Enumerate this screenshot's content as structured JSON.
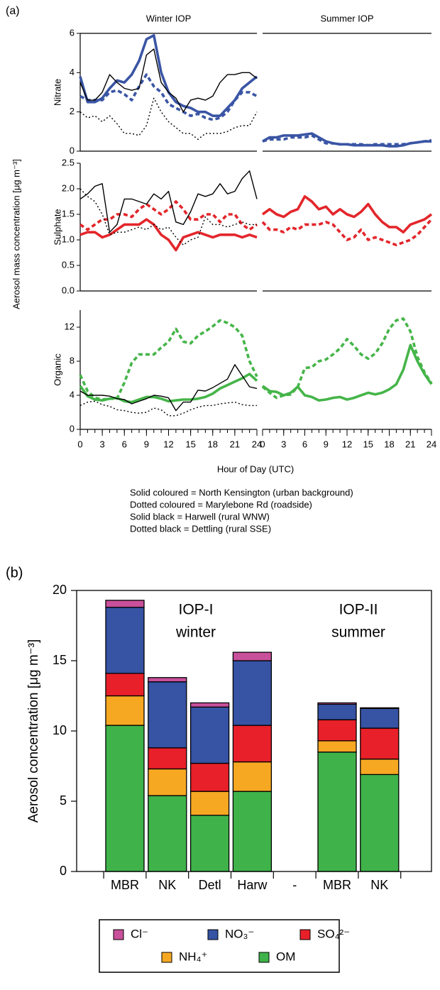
{
  "panel_a": {
    "label": "(a)",
    "ylabel": "Aerosol mass concentration [μg m⁻³]",
    "xlabel": "Hour of Day (UTC)",
    "notes": [
      "Solid coloured = North Kensington (urban background)",
      "Dotted coloured = Marylebone Rd (roadside)",
      "Solid black = Harwell (rural WNW)",
      "Dotted black = Dettling (rural SSE)"
    ]
  },
  "panel_b": {
    "label": "(b)"
  },
  "chart_data": [
    {
      "type": "line",
      "title": "Winter IOP",
      "ylabel": "Nitrate",
      "x": [
        0,
        1,
        2,
        3,
        4,
        5,
        6,
        7,
        8,
        9,
        10,
        11,
        12,
        13,
        14,
        15,
        16,
        17,
        18,
        19,
        20,
        21,
        22,
        23,
        24
      ],
      "xlim": [
        0,
        24
      ],
      "ylim": [
        0,
        6
      ],
      "yticks": [
        0,
        2,
        4,
        6
      ],
      "series": [
        {
          "color": "#3a55a4",
          "dash": false,
          "values": [
            3.8,
            2.5,
            2.5,
            2.7,
            3.2,
            3.6,
            3.5,
            3.9,
            4.6,
            5.7,
            5.9,
            4.0,
            3.0,
            2.5,
            2.3,
            2.2,
            2.0,
            2.0,
            1.8,
            1.8,
            2.2,
            2.6,
            3.2,
            3.5,
            3.8
          ]
        },
        {
          "color": "#3a55a4",
          "dash": true,
          "values": [
            2.8,
            2.6,
            2.6,
            2.6,
            3.0,
            3.1,
            2.9,
            2.6,
            3.3,
            3.9,
            3.3,
            3.0,
            2.4,
            2.2,
            2.0,
            1.8,
            1.9,
            1.7,
            1.6,
            1.7,
            2.0,
            2.6,
            3.0,
            3.0,
            2.8
          ]
        },
        {
          "color": "#000000",
          "dash": false,
          "values": [
            3.5,
            2.6,
            2.6,
            3.0,
            3.9,
            3.5,
            3.2,
            3.1,
            3.2,
            4.9,
            5.2,
            3.5,
            3.0,
            2.7,
            2.0,
            2.6,
            2.7,
            2.6,
            2.8,
            3.5,
            3.9,
            3.9,
            4.0,
            4.0,
            3.7
          ]
        },
        {
          "color": "#000000",
          "dash": true,
          "values": [
            2.0,
            1.7,
            1.8,
            1.5,
            1.8,
            1.4,
            0.9,
            0.9,
            0.8,
            1.3,
            2.7,
            2.0,
            1.5,
            1.2,
            0.9,
            0.9,
            0.6,
            0.9,
            0.9,
            0.9,
            1.0,
            1.2,
            1.3,
            1.3,
            2.0
          ]
        }
      ]
    },
    {
      "type": "line",
      "title": "Summer IOP",
      "x": [
        0,
        1,
        2,
        3,
        4,
        5,
        6,
        7,
        8,
        9,
        10,
        11,
        12,
        13,
        14,
        15,
        16,
        17,
        18,
        19,
        20,
        21,
        22,
        23,
        24
      ],
      "xlim": [
        0,
        24
      ],
      "ylim": [
        0,
        6
      ],
      "series": [
        {
          "color": "#3a55a4",
          "dash": false,
          "values": [
            0.5,
            0.7,
            0.7,
            0.8,
            0.8,
            0.8,
            0.85,
            0.9,
            0.7,
            0.5,
            0.4,
            0.35,
            0.35,
            0.3,
            0.3,
            0.3,
            0.3,
            0.3,
            0.25,
            0.25,
            0.3,
            0.4,
            0.45,
            0.5,
            0.5
          ]
        },
        {
          "color": "#3a55a4",
          "dash": true,
          "values": [
            0.5,
            0.6,
            0.6,
            0.6,
            0.7,
            0.7,
            0.7,
            0.8,
            0.6,
            0.4,
            0.4,
            0.35,
            0.35,
            0.35,
            0.35,
            0.3,
            0.35,
            0.35,
            0.35,
            0.35,
            0.35,
            0.4,
            0.45,
            0.5,
            0.55
          ]
        }
      ]
    },
    {
      "type": "line",
      "ylabel": "Sulphate",
      "x": [
        0,
        1,
        2,
        3,
        4,
        5,
        6,
        7,
        8,
        9,
        10,
        11,
        12,
        13,
        14,
        15,
        16,
        17,
        18,
        19,
        20,
        21,
        22,
        23,
        24
      ],
      "xlim": [
        0,
        24
      ],
      "ylim": [
        0,
        2.5
      ],
      "yticks": [
        {
          "value": 0,
          "label": "0.0"
        },
        0.5,
        {
          "value": 1,
          "label": "1.0"
        },
        1.5,
        {
          "value": 2,
          "label": "2.0"
        },
        2.5
      ],
      "series": [
        {
          "color": "#e3262b",
          "dash": false,
          "values": [
            1.1,
            1.15,
            1.15,
            1.05,
            1.1,
            1.2,
            1.3,
            1.3,
            1.3,
            1.4,
            1.3,
            1.1,
            1.0,
            0.8,
            1.05,
            1.1,
            1.15,
            1.1,
            1.05,
            1.1,
            1.1,
            1.1,
            1.05,
            1.1,
            1.05
          ]
        },
        {
          "color": "#e3262b",
          "dash": true,
          "values": [
            1.3,
            1.2,
            1.3,
            1.4,
            1.4,
            1.5,
            1.5,
            1.45,
            1.6,
            1.7,
            1.6,
            1.5,
            1.6,
            1.75,
            1.6,
            1.4,
            1.4,
            1.5,
            1.5,
            1.35,
            1.5,
            1.5,
            1.3,
            1.2,
            1.3
          ]
        },
        {
          "color": "#000000",
          "dash": false,
          "values": [
            1.8,
            1.9,
            2.05,
            2.1,
            1.15,
            1.3,
            1.8,
            1.8,
            1.75,
            1.7,
            1.9,
            1.8,
            1.95,
            1.35,
            1.3,
            1.55,
            1.9,
            1.85,
            1.9,
            2.1,
            1.9,
            1.95,
            2.2,
            2.35,
            1.8
          ]
        },
        {
          "color": "#000000",
          "dash": true,
          "values": [
            2.0,
            1.85,
            1.75,
            1.5,
            1.1,
            1.15,
            1.15,
            1.2,
            1.25,
            1.2,
            1.3,
            1.2,
            1.25,
            1.05,
            0.9,
            1.0,
            1.05,
            1.45,
            1.3,
            1.3,
            1.25,
            1.3,
            1.35,
            1.3,
            1.3
          ]
        }
      ]
    },
    {
      "type": "line",
      "x": [
        0,
        1,
        2,
        3,
        4,
        5,
        6,
        7,
        8,
        9,
        10,
        11,
        12,
        13,
        14,
        15,
        16,
        17,
        18,
        19,
        20,
        21,
        22,
        23,
        24
      ],
      "xlim": [
        0,
        24
      ],
      "ylim": [
        0,
        2.5
      ],
      "series": [
        {
          "color": "#e3262b",
          "dash": false,
          "values": [
            1.5,
            1.6,
            1.5,
            1.45,
            1.55,
            1.6,
            1.85,
            1.75,
            1.6,
            1.65,
            1.5,
            1.6,
            1.5,
            1.45,
            1.55,
            1.7,
            1.5,
            1.35,
            1.25,
            1.25,
            1.15,
            1.3,
            1.35,
            1.4,
            1.5
          ]
        },
        {
          "color": "#e3262b",
          "dash": true,
          "values": [
            1.35,
            1.2,
            1.2,
            1.15,
            1.25,
            1.2,
            1.3,
            1.3,
            1.3,
            1.35,
            1.3,
            1.15,
            1.0,
            1.05,
            1.2,
            1.0,
            1.05,
            1.0,
            0.95,
            0.9,
            0.95,
            1.0,
            1.1,
            1.25,
            1.4
          ]
        }
      ]
    },
    {
      "type": "line",
      "ylabel": "Organic",
      "x": [
        0,
        1,
        2,
        3,
        4,
        5,
        6,
        7,
        8,
        9,
        10,
        11,
        12,
        13,
        14,
        15,
        16,
        17,
        18,
        19,
        20,
        21,
        22,
        23,
        24
      ],
      "xlim": [
        0,
        24
      ],
      "xticks": [
        0,
        3,
        6,
        9,
        12,
        15,
        18,
        21,
        24
      ],
      "ylim": [
        0,
        14
      ],
      "yticks": [
        0,
        4,
        8,
        12
      ],
      "series": [
        {
          "color": "#45b549",
          "dash": false,
          "values": [
            5.1,
            3.9,
            3.5,
            3.4,
            3.6,
            3.7,
            3.3,
            3.2,
            3.5,
            3.8,
            3.8,
            3.6,
            3.3,
            3.4,
            3.5,
            3.5,
            3.6,
            3.8,
            4.2,
            4.8,
            5.2,
            5.6,
            6.0,
            6.5,
            5.7
          ]
        },
        {
          "color": "#45b549",
          "dash": true,
          "values": [
            6.4,
            4.5,
            3.7,
            3.5,
            3.6,
            3.6,
            5.5,
            7.8,
            8.8,
            8.8,
            8.8,
            9.6,
            10.3,
            11.8,
            10.3,
            10.1,
            11.0,
            11.5,
            12.1,
            12.8,
            12.5,
            12.0,
            11.0,
            8.0,
            6.2
          ]
        },
        {
          "color": "#000000",
          "dash": false,
          "values": [
            4.5,
            4.0,
            4.0,
            4.0,
            3.9,
            3.6,
            3.5,
            3.0,
            3.3,
            3.6,
            4.0,
            3.9,
            3.7,
            2.2,
            3.2,
            3.2,
            4.6,
            4.5,
            4.9,
            5.4,
            5.9,
            7.6,
            6.3,
            5.0,
            4.8
          ]
        },
        {
          "color": "#000000",
          "dash": true,
          "values": [
            2.8,
            3.2,
            3.3,
            2.9,
            2.7,
            2.3,
            2.2,
            2.0,
            1.9,
            2.0,
            2.5,
            2.3,
            1.6,
            1.6,
            1.9,
            2.3,
            2.6,
            2.8,
            2.8,
            3.0,
            3.1,
            3.2,
            2.9,
            2.8,
            2.8
          ]
        }
      ]
    },
    {
      "type": "line",
      "x": [
        0,
        1,
        2,
        3,
        4,
        5,
        6,
        7,
        8,
        9,
        10,
        11,
        12,
        13,
        14,
        15,
        16,
        17,
        18,
        19,
        20,
        21,
        22,
        23,
        24
      ],
      "xlim": [
        0,
        24
      ],
      "xticks": [
        0,
        3,
        6,
        9,
        12,
        15,
        18,
        21,
        24
      ],
      "ylim": [
        0,
        14
      ],
      "series": [
        {
          "color": "#45b549",
          "dash": false,
          "values": [
            5.1,
            4.5,
            4.4,
            4.0,
            4.3,
            5.0,
            4.0,
            3.8,
            3.4,
            3.5,
            3.7,
            3.8,
            3.5,
            3.7,
            4.0,
            4.3,
            4.1,
            4.3,
            4.7,
            5.3,
            7.0,
            9.9,
            8.0,
            6.5,
            5.3
          ]
        },
        {
          "color": "#45b549",
          "dash": true,
          "values": [
            5.0,
            4.3,
            3.7,
            4.0,
            4.1,
            5.0,
            7.2,
            7.3,
            8.0,
            8.2,
            8.8,
            9.5,
            10.6,
            9.8,
            8.8,
            8.3,
            8.9,
            10.1,
            11.8,
            12.8,
            13.0,
            11.5,
            8.5,
            6.7,
            5.4
          ]
        }
      ]
    },
    {
      "type": "bar",
      "stacked": true,
      "ylabel": "Aerosol concentration [μg m⁻³]",
      "annotations": [
        "IOP-I",
        "winter",
        "IOP-II",
        "summer"
      ],
      "categories": [
        "MBR",
        "NK",
        "Detl",
        "Harw",
        "-",
        "MBR",
        "NK"
      ],
      "ylim": [
        0,
        20
      ],
      "yticks": [
        0,
        5,
        10,
        15,
        20
      ],
      "series": [
        {
          "name": "OM",
          "color": "#3fb34a",
          "values": [
            10.4,
            5.4,
            4.0,
            5.7,
            null,
            8.5,
            6.9
          ]
        },
        {
          "name": "NH₄⁺",
          "color": "#f7a823",
          "values": [
            2.1,
            1.9,
            1.7,
            2.1,
            null,
            0.8,
            1.1
          ]
        },
        {
          "name": "SO₄²⁻",
          "color": "#e8202a",
          "values": [
            1.6,
            1.5,
            2.0,
            2.6,
            null,
            1.5,
            2.2
          ]
        },
        {
          "name": "NO₃⁻",
          "color": "#3653a4",
          "values": [
            4.7,
            4.7,
            4.0,
            4.6,
            null,
            1.1,
            1.4
          ]
        },
        {
          "name": "Cl⁻",
          "color": "#c9509b",
          "values": [
            0.5,
            0.3,
            0.3,
            0.6,
            null,
            0.1,
            0.05
          ]
        }
      ]
    }
  ]
}
